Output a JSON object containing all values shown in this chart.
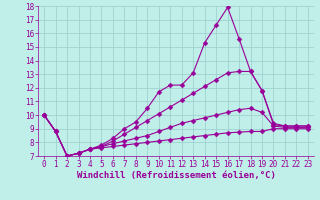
{
  "xlabel": "Windchill (Refroidissement éolien,°C)",
  "xlim": [
    -0.5,
    23.5
  ],
  "ylim": [
    7,
    18
  ],
  "xticks": [
    0,
    1,
    2,
    3,
    4,
    5,
    6,
    7,
    8,
    9,
    10,
    11,
    12,
    13,
    14,
    15,
    16,
    17,
    18,
    19,
    20,
    21,
    22,
    23
  ],
  "yticks": [
    7,
    8,
    9,
    10,
    11,
    12,
    13,
    14,
    15,
    16,
    17,
    18
  ],
  "bg_color": "#c0eee8",
  "line_color": "#990099",
  "grid_color": "#99cccc",
  "lines": [
    {
      "x": [
        0,
        1,
        2,
        3,
        4,
        5,
        6,
        7,
        8,
        9,
        10,
        11,
        12,
        13,
        14,
        15,
        16,
        17,
        18,
        19,
        20,
        21,
        22,
        23
      ],
      "y": [
        10,
        8.8,
        7.0,
        7.2,
        7.5,
        7.8,
        8.3,
        9.0,
        9.5,
        10.5,
        11.7,
        12.2,
        12.2,
        13.1,
        15.3,
        16.6,
        17.9,
        15.6,
        13.2,
        11.8,
        9.4,
        9.2,
        9.2,
        9.2
      ],
      "markers": [
        0,
        1,
        2,
        3,
        4,
        5,
        6,
        7,
        8,
        9,
        10,
        11,
        12,
        13,
        14,
        15,
        16,
        17,
        18,
        19,
        20,
        21,
        22,
        23
      ]
    },
    {
      "x": [
        0,
        1,
        2,
        3,
        4,
        5,
        6,
        7,
        8,
        9,
        10,
        11,
        12,
        13,
        14,
        15,
        16,
        17,
        18,
        19,
        20,
        21,
        22,
        23
      ],
      "y": [
        10,
        8.8,
        7.0,
        7.2,
        7.5,
        7.7,
        8.1,
        8.6,
        9.1,
        9.6,
        10.1,
        10.6,
        11.1,
        11.6,
        12.1,
        12.6,
        13.1,
        13.2,
        13.2,
        11.8,
        9.3,
        9.2,
        9.2,
        9.2
      ],
      "markers": [
        0,
        1,
        2,
        3,
        4,
        5,
        6,
        7,
        8,
        9,
        10,
        11,
        12,
        13,
        14,
        15,
        16,
        17,
        18,
        19,
        20,
        21,
        22,
        23
      ]
    },
    {
      "x": [
        0,
        1,
        2,
        3,
        4,
        5,
        6,
        7,
        8,
        9,
        10,
        11,
        12,
        13,
        14,
        15,
        16,
        17,
        18,
        19,
        20,
        21,
        22,
        23
      ],
      "y": [
        10,
        8.8,
        7.0,
        7.2,
        7.5,
        7.7,
        7.9,
        8.1,
        8.3,
        8.5,
        8.8,
        9.1,
        9.4,
        9.6,
        9.8,
        10.0,
        10.2,
        10.4,
        10.5,
        10.2,
        9.2,
        9.1,
        9.1,
        9.1
      ],
      "markers": [
        0,
        1,
        2,
        3,
        4,
        5,
        6,
        7,
        8,
        9,
        10,
        11,
        12,
        13,
        14,
        15,
        16,
        17,
        18,
        19,
        20,
        21,
        22,
        23
      ]
    },
    {
      "x": [
        0,
        1,
        2,
        3,
        4,
        5,
        6,
        7,
        8,
        9,
        10,
        11,
        12,
        13,
        14,
        15,
        16,
        17,
        18,
        19,
        20,
        21,
        22,
        23
      ],
      "y": [
        10,
        8.8,
        7.0,
        7.2,
        7.5,
        7.6,
        7.7,
        7.8,
        7.9,
        8.0,
        8.1,
        8.2,
        8.3,
        8.4,
        8.5,
        8.6,
        8.7,
        8.75,
        8.8,
        8.8,
        9.0,
        9.0,
        9.0,
        9.0
      ],
      "markers": [
        0,
        1,
        2,
        3,
        4,
        5,
        6,
        7,
        8,
        9,
        10,
        11,
        12,
        13,
        14,
        15,
        16,
        17,
        18,
        19,
        20,
        21,
        22,
        23
      ]
    }
  ],
  "marker": "D",
  "marker_size": 2.5,
  "line_width": 0.8,
  "xlabel_fontsize": 6.5,
  "tick_fontsize": 5.5
}
